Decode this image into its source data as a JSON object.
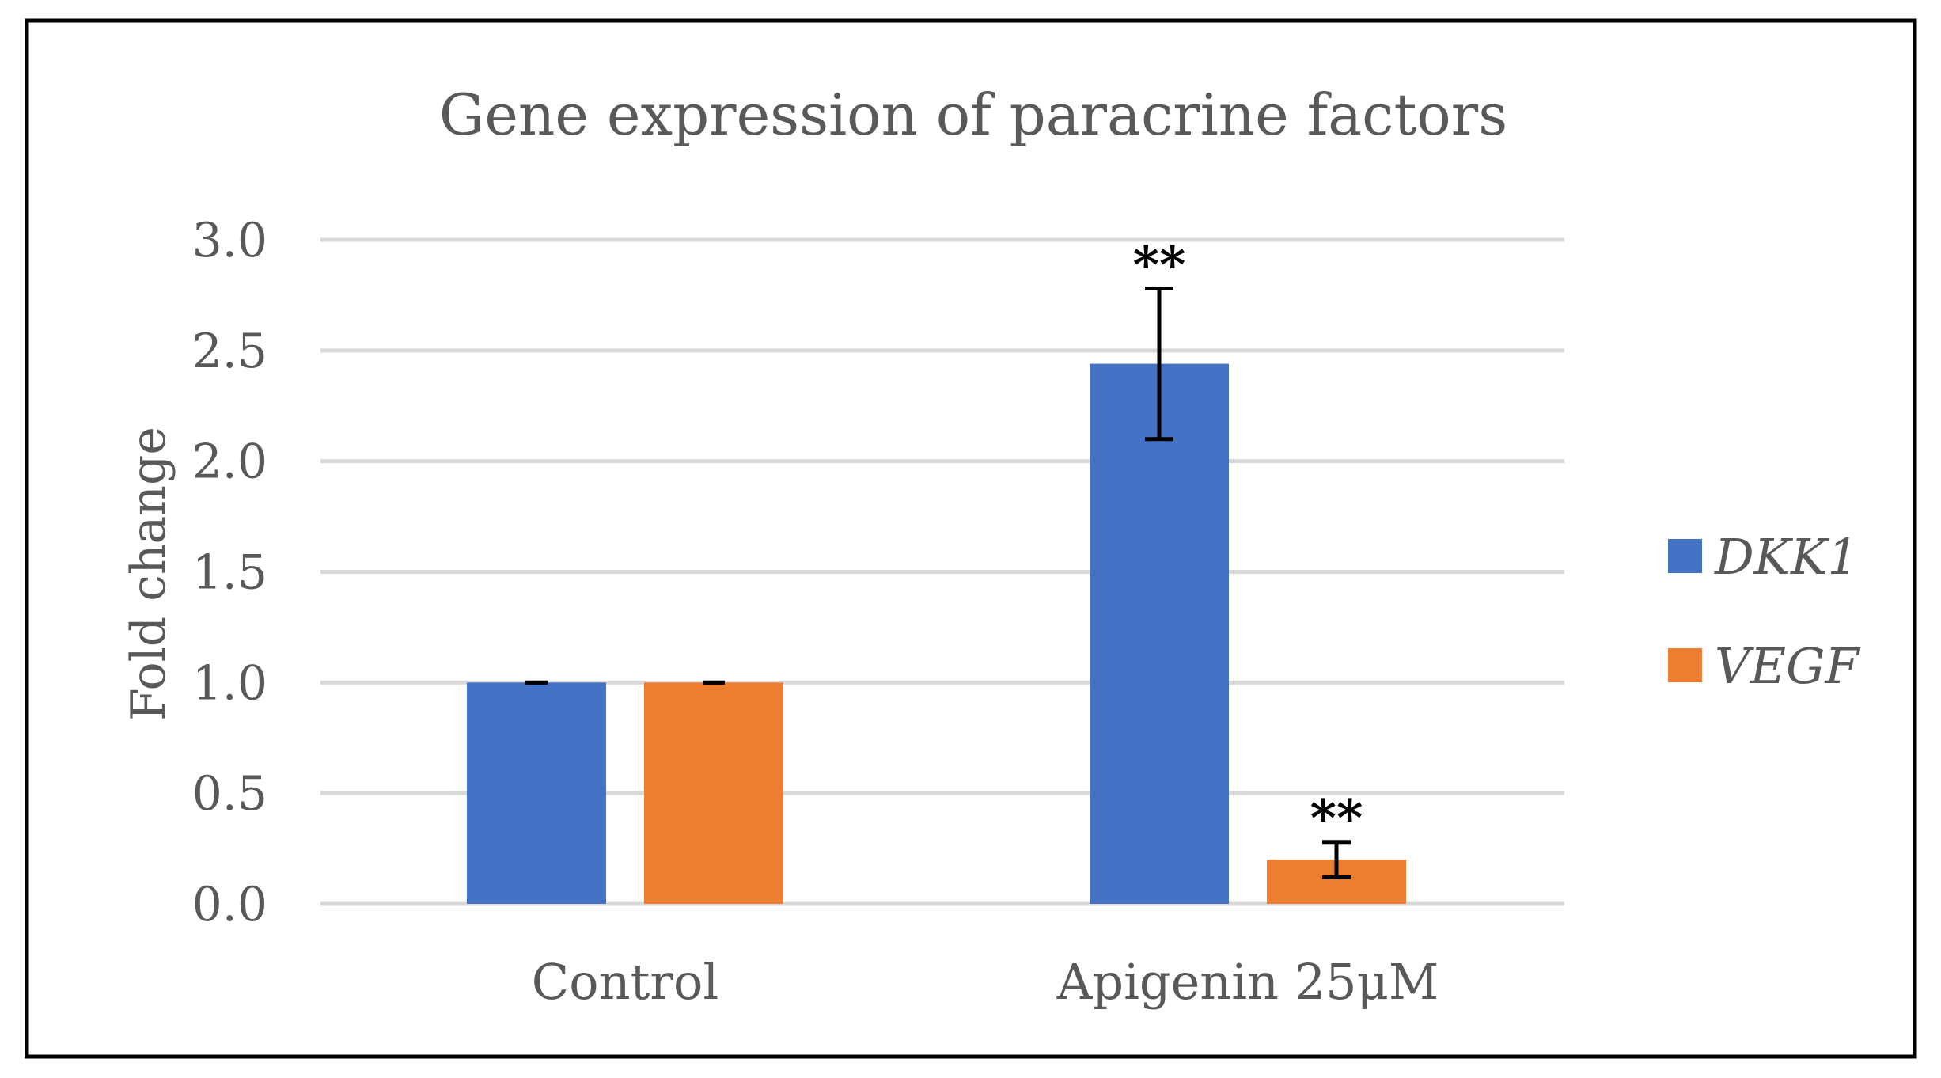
{
  "chart_data": {
    "type": "bar",
    "title": "Gene expression of paracrine factors",
    "xlabel": "",
    "ylabel": "Fold change",
    "ylim": [
      0,
      3.0
    ],
    "yticks": [
      0.0,
      0.5,
      1.0,
      1.5,
      2.0,
      2.5,
      3.0
    ],
    "ytick_labels": [
      "0.0",
      "0.5",
      "1.0",
      "1.5",
      "2.0",
      "2.5",
      "3.0"
    ],
    "grid": true,
    "legend_position": "right",
    "categories": [
      "Control",
      "Apigenin 25μM"
    ],
    "series": [
      {
        "name": "DKK1",
        "color": "#4472C4",
        "values": [
          1.0,
          2.44
        ],
        "errors": [
          0.0,
          0.34
        ],
        "annotations": [
          "",
          "**"
        ]
      },
      {
        "name": "VEGF",
        "color": "#ED7D31",
        "values": [
          1.0,
          0.2
        ],
        "errors": [
          0.0,
          0.08
        ],
        "annotations": [
          "",
          "**"
        ]
      }
    ]
  },
  "colors": {
    "gridline": "#D9D9D9",
    "text": "#595959",
    "frame": "#000000",
    "error_bar": "#000000"
  }
}
